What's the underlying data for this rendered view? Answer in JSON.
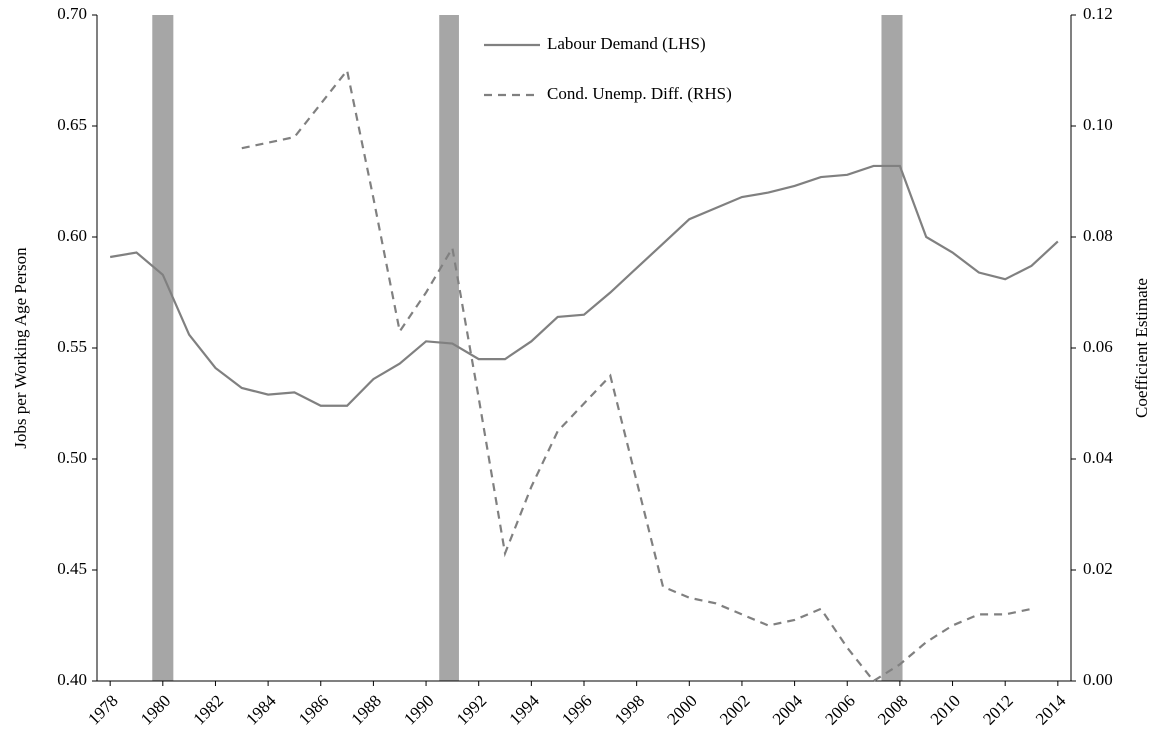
{
  "chart_data": {
    "type": "line",
    "x": [
      1978,
      1979,
      1980,
      1981,
      1982,
      1983,
      1984,
      1985,
      1986,
      1987,
      1988,
      1989,
      1990,
      1991,
      1992,
      1993,
      1994,
      1995,
      1996,
      1997,
      1998,
      1999,
      2000,
      2001,
      2002,
      2003,
      2004,
      2005,
      2006,
      2007,
      2008,
      2009,
      2010,
      2011,
      2012,
      2013,
      2014
    ],
    "series": [
      {
        "name": "Labour Demand (LHS)",
        "color": "#808080",
        "dash": false,
        "values": [
          0.591,
          0.593,
          0.583,
          0.556,
          0.541,
          0.532,
          0.529,
          0.53,
          0.524,
          0.524,
          0.536,
          0.543,
          0.553,
          0.552,
          0.545,
          0.545,
          0.553,
          0.564,
          0.565,
          0.575,
          0.586,
          0.597,
          0.608,
          0.613,
          0.618,
          0.62,
          0.623,
          0.627,
          0.628,
          0.632,
          0.632,
          0.6,
          0.593,
          0.584,
          0.581,
          0.587,
          0.598
        ]
      },
      {
        "name": "Cond. Unemp. Diff. (RHS)",
        "color": "#808080",
        "dash": true,
        "axis": "y2",
        "values": [
          null,
          null,
          null,
          null,
          null,
          0.096,
          0.097,
          0.098,
          0.104,
          0.11,
          0.087,
          0.063,
          0.07,
          0.078,
          0.051,
          0.023,
          0.035,
          0.045,
          0.05,
          0.055,
          0.036,
          0.017,
          0.015,
          0.014,
          0.012,
          0.01,
          0.011,
          0.013,
          0.006,
          0.0,
          0.003,
          0.007,
          0.01,
          0.012,
          0.012,
          0.013,
          null
        ]
      }
    ],
    "recessions": [
      [
        1979.6,
        1980.4
      ],
      [
        1990.5,
        1991.25
      ],
      [
        2007.3,
        2008.1
      ]
    ],
    "recession_color": "#a6a6a6",
    "xlim": [
      1977.5,
      2014.5
    ],
    "xticks": [
      1978,
      1980,
      1982,
      1984,
      1986,
      1988,
      1990,
      1992,
      1994,
      1996,
      1998,
      2000,
      2002,
      2004,
      2006,
      2008,
      2010,
      2012,
      2014
    ],
    "ylim": [
      0.4,
      0.7
    ],
    "yticks": [
      {
        "value": 0.4,
        "label": "0.40"
      },
      {
        "value": 0.45,
        "label": "0.45"
      },
      {
        "value": 0.5,
        "label": "0.50"
      },
      {
        "value": 0.55,
        "label": "0.55"
      },
      {
        "value": 0.6,
        "label": "0.60"
      },
      {
        "value": 0.65,
        "label": "0.65"
      },
      {
        "value": 0.7,
        "label": "0.70"
      }
    ],
    "y2lim": [
      0.0,
      0.12
    ],
    "y2ticks": [
      {
        "value": 0.0,
        "label": "0.00"
      },
      {
        "value": 0.02,
        "label": "0.02"
      },
      {
        "value": 0.04,
        "label": "0.04"
      },
      {
        "value": 0.06,
        "label": "0.06"
      },
      {
        "value": 0.08,
        "label": "0.08"
      },
      {
        "value": 0.1,
        "label": "0.10"
      },
      {
        "value": 0.12,
        "label": "0.12"
      }
    ],
    "ylabel": "Jobs per Working Age Person",
    "y2label": "Coefficient Estimate"
  }
}
